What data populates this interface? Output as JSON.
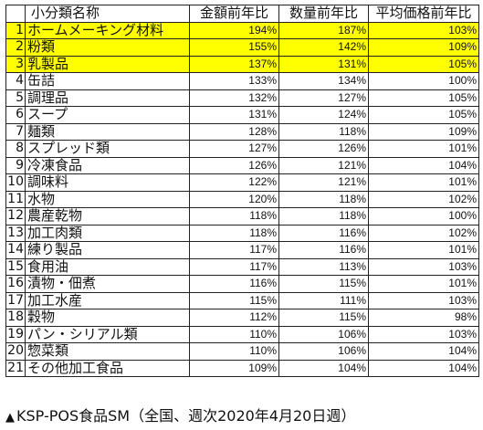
{
  "table": {
    "headers": {
      "corner": "",
      "name": "小分類名称",
      "amount": "金額前年比",
      "quantity": "数量前年比",
      "price": "平均価格前年比"
    },
    "highlight_color": "#ffff00",
    "rows": [
      {
        "no": "1",
        "name": "ホームメーキング材料",
        "amount": "194%",
        "quantity": "187%",
        "price": "103%",
        "highlight": true
      },
      {
        "no": "2",
        "name": "粉類",
        "amount": "155%",
        "quantity": "142%",
        "price": "109%",
        "highlight": true
      },
      {
        "no": "3",
        "name": "乳製品",
        "amount": "137%",
        "quantity": "131%",
        "price": "105%",
        "highlight": true
      },
      {
        "no": "4",
        "name": "缶詰",
        "amount": "133%",
        "quantity": "134%",
        "price": "100%",
        "highlight": false
      },
      {
        "no": "5",
        "name": "調理品",
        "amount": "132%",
        "quantity": "127%",
        "price": "105%",
        "highlight": false
      },
      {
        "no": "6",
        "name": "スープ",
        "amount": "131%",
        "quantity": "124%",
        "price": "105%",
        "highlight": false
      },
      {
        "no": "7",
        "name": "麺類",
        "amount": "128%",
        "quantity": "118%",
        "price": "109%",
        "highlight": false
      },
      {
        "no": "8",
        "name": "スプレッド類",
        "amount": "127%",
        "quantity": "126%",
        "price": "101%",
        "highlight": false
      },
      {
        "no": "9",
        "name": "冷凍食品",
        "amount": "126%",
        "quantity": "121%",
        "price": "104%",
        "highlight": false
      },
      {
        "no": "10",
        "name": "調味料",
        "amount": "122%",
        "quantity": "121%",
        "price": "101%",
        "highlight": false
      },
      {
        "no": "11",
        "name": "水物",
        "amount": "120%",
        "quantity": "118%",
        "price": "102%",
        "highlight": false
      },
      {
        "no": "12",
        "name": "農産乾物",
        "amount": "118%",
        "quantity": "118%",
        "price": "100%",
        "highlight": false
      },
      {
        "no": "13",
        "name": "加工肉類",
        "amount": "118%",
        "quantity": "116%",
        "price": "102%",
        "highlight": false
      },
      {
        "no": "14",
        "name": "練り製品",
        "amount": "117%",
        "quantity": "116%",
        "price": "101%",
        "highlight": false
      },
      {
        "no": "15",
        "name": "食用油",
        "amount": "117%",
        "quantity": "113%",
        "price": "103%",
        "highlight": false
      },
      {
        "no": "16",
        "name": "漬物・佃煮",
        "amount": "116%",
        "quantity": "115%",
        "price": "101%",
        "highlight": false
      },
      {
        "no": "17",
        "name": "加工水産",
        "amount": "115%",
        "quantity": "111%",
        "price": "103%",
        "highlight": false
      },
      {
        "no": "18",
        "name": "穀物",
        "amount": "112%",
        "quantity": "115%",
        "price": "98%",
        "highlight": false
      },
      {
        "no": "19",
        "name": "パン・シリアル類",
        "amount": "110%",
        "quantity": "106%",
        "price": "103%",
        "highlight": false
      },
      {
        "no": "20",
        "name": "惣菜類",
        "amount": "110%",
        "quantity": "106%",
        "price": "104%",
        "highlight": false
      },
      {
        "no": "21",
        "name": "その他加工食品",
        "amount": "109%",
        "quantity": "104%",
        "price": "104%",
        "highlight": false
      }
    ]
  },
  "caption": {
    "marker": "▲",
    "text": "KSP-POS食品SM（全国、週次2020年4月20日週）"
  }
}
